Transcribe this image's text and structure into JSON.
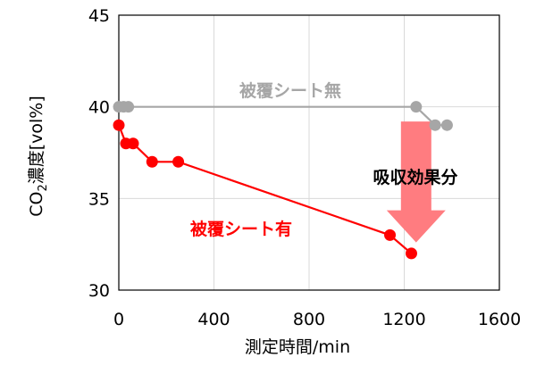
{
  "chart_data": {
    "type": "line",
    "xlabel": "測定時間/min",
    "ylabel_prefix": "CO",
    "ylabel_sub": "2",
    "ylabel_suffix": "濃度[vol%]",
    "xlim": [
      0,
      1600
    ],
    "ylim": [
      30,
      45
    ],
    "xticks": [
      0,
      400,
      800,
      1200,
      1600
    ],
    "yticks": [
      30,
      35,
      40,
      45
    ],
    "grid": true,
    "series": [
      {
        "name": "被覆シート無",
        "color": "#a6a6a6",
        "points": [
          [
            0,
            40
          ],
          [
            20,
            40
          ],
          [
            40,
            40
          ],
          [
            1250,
            40
          ],
          [
            1330,
            39
          ],
          [
            1380,
            39
          ]
        ]
      },
      {
        "name": "被覆シート有",
        "color": "#ff0000",
        "points": [
          [
            0,
            39
          ],
          [
            30,
            38
          ],
          [
            60,
            38
          ],
          [
            140,
            37
          ],
          [
            250,
            37
          ],
          [
            1140,
            33
          ],
          [
            1230,
            32
          ]
        ]
      }
    ],
    "annotation": {
      "text": "吸収効果分",
      "arrow_color": "#ff7c80",
      "arrow_from_y": 39.2,
      "arrow_to_y": 32.6,
      "arrow_x": 1250
    }
  }
}
